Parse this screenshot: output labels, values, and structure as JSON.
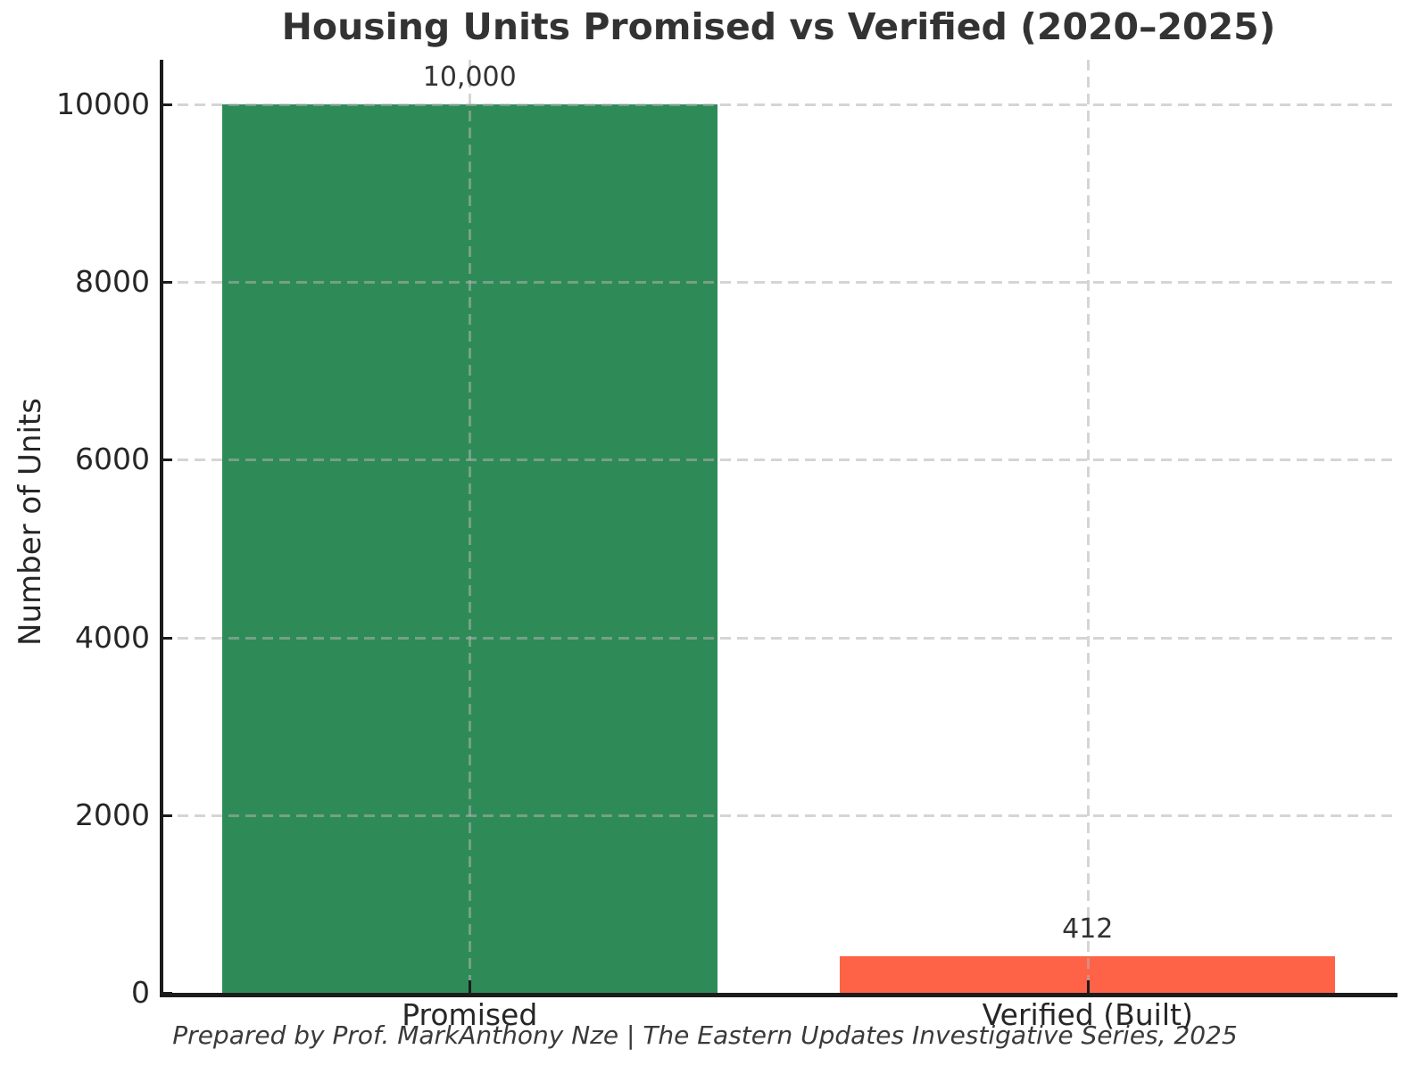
{
  "chart_data": {
    "type": "bar",
    "title": "Housing Units Promised vs Verified (2020–2025)",
    "ylabel": "Number of Units",
    "xlabel": "",
    "categories": [
      "Promised",
      "Verified (Built)"
    ],
    "values": [
      10000,
      412
    ],
    "value_labels": [
      "10,000",
      "412"
    ],
    "bar_colors": [
      "#2e8b57",
      "#ff6347"
    ],
    "yticks": [
      0,
      2000,
      4000,
      6000,
      8000,
      10000
    ],
    "ylim": [
      0,
      10500
    ],
    "grid": "dashed horizontal and vertical gridlines drawn over bars",
    "legend_position": "none",
    "footer": "Prepared by Prof. MarkAnthony Nze | The Eastern Updates Investigative Series, 2025"
  },
  "colors": {
    "promised_bar": "#2e8b57",
    "verified_bar": "#ff6347",
    "text": "#262626",
    "grid": "#b2b2b2",
    "axis": "#1c1c1c",
    "background": "#ffffff"
  }
}
